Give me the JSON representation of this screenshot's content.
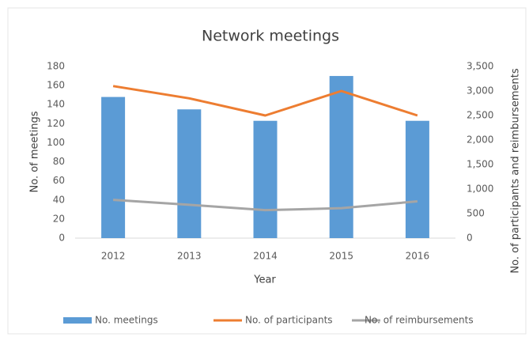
{
  "chart_data": {
    "type": "bar",
    "title": "Network meetings",
    "xlabel": "Year",
    "ylabel": "No. of meetings",
    "y2label": "No. of participants and reimbursements",
    "categories": [
      "2012",
      "2013",
      "2014",
      "2015",
      "2016"
    ],
    "series": [
      {
        "name": "No. meetings",
        "type": "bar",
        "color": "#5b9bd5",
        "values": [
          148,
          135,
          123,
          170,
          123
        ]
      },
      {
        "name": "No. of participants",
        "type": "line",
        "axis": "y2",
        "color": "#ed7d31",
        "values": [
          3100,
          2850,
          2500,
          3000,
          2500
        ]
      },
      {
        "name": "No. of reimbursements",
        "type": "line",
        "axis": "y2",
        "color": "#a5a5a5",
        "values": [
          780,
          680,
          570,
          610,
          750
        ]
      }
    ],
    "ylim": [
      0,
      180
    ],
    "yticks": [
      0,
      20,
      40,
      60,
      80,
      100,
      120,
      140,
      160,
      180
    ],
    "y2lim": [
      0,
      3500
    ],
    "y2ticks": [
      0,
      500,
      {
        "value": 1000,
        "label": "1,000"
      },
      {
        "value": 1500,
        "label": "1,500"
      },
      {
        "value": 2000,
        "label": "2,000"
      },
      {
        "value": 2500,
        "label": "2,500"
      },
      {
        "value": 3000,
        "label": "3,000"
      },
      {
        "value": 3500,
        "label": "3,500"
      }
    ],
    "grid": false,
    "legend": "bottom"
  }
}
